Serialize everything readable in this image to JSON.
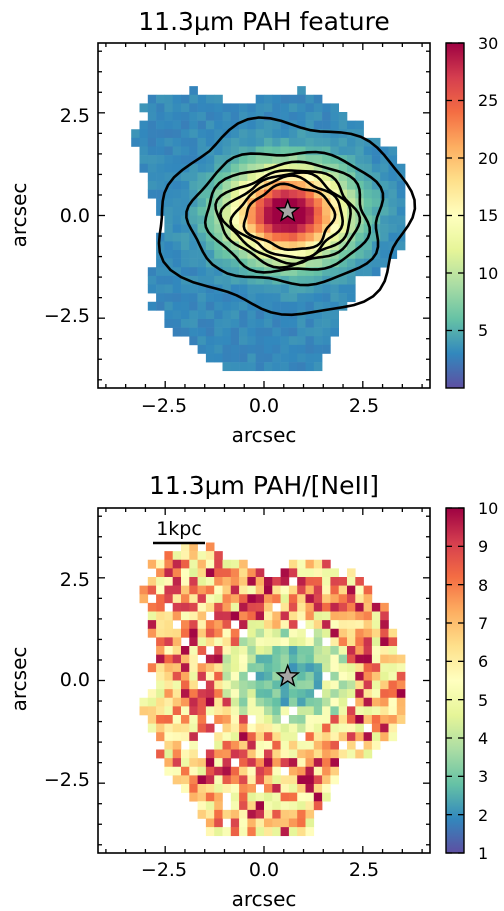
{
  "chart_data": [
    {
      "type": "heatmap",
      "title": "11.3μm PAH feature",
      "xlabel": "arcsec",
      "ylabel": "arcsec",
      "xlim": [
        -4.2,
        4.2
      ],
      "ylim": [
        -4.2,
        4.2
      ],
      "xticks": [
        "−2.5",
        "0.0",
        "2.5"
      ],
      "yticks": [
        "2.5",
        "0.0",
        "−2.5"
      ],
      "colorbar": {
        "min": 0,
        "max": 30,
        "ticks": [
          "5",
          "10",
          "15",
          "20",
          "25",
          "30"
        ]
      },
      "star_marker": {
        "x": 0.6,
        "y": 0.1
      },
      "contours": true,
      "colormap": "Spectral_r"
    },
    {
      "type": "heatmap",
      "title": "11.3μm PAH/[NeII]",
      "xlabel": "arcsec",
      "ylabel": "arcsec",
      "xlim": [
        -4.2,
        4.2
      ],
      "ylim": [
        -4.2,
        4.2
      ],
      "xticks": [
        "−2.5",
        "0.0",
        "2.5"
      ],
      "yticks": [
        "2.5",
        "0.0",
        "−2.5"
      ],
      "colorbar": {
        "min": 1,
        "max": 10,
        "ticks": [
          "1",
          "2",
          "3",
          "4",
          "5",
          "6",
          "7",
          "8",
          "9",
          "10"
        ]
      },
      "star_marker": {
        "x": 0.6,
        "y": 0.1
      },
      "scale_bar": {
        "label": "1kpc"
      },
      "colormap": "Spectral_r"
    }
  ]
}
